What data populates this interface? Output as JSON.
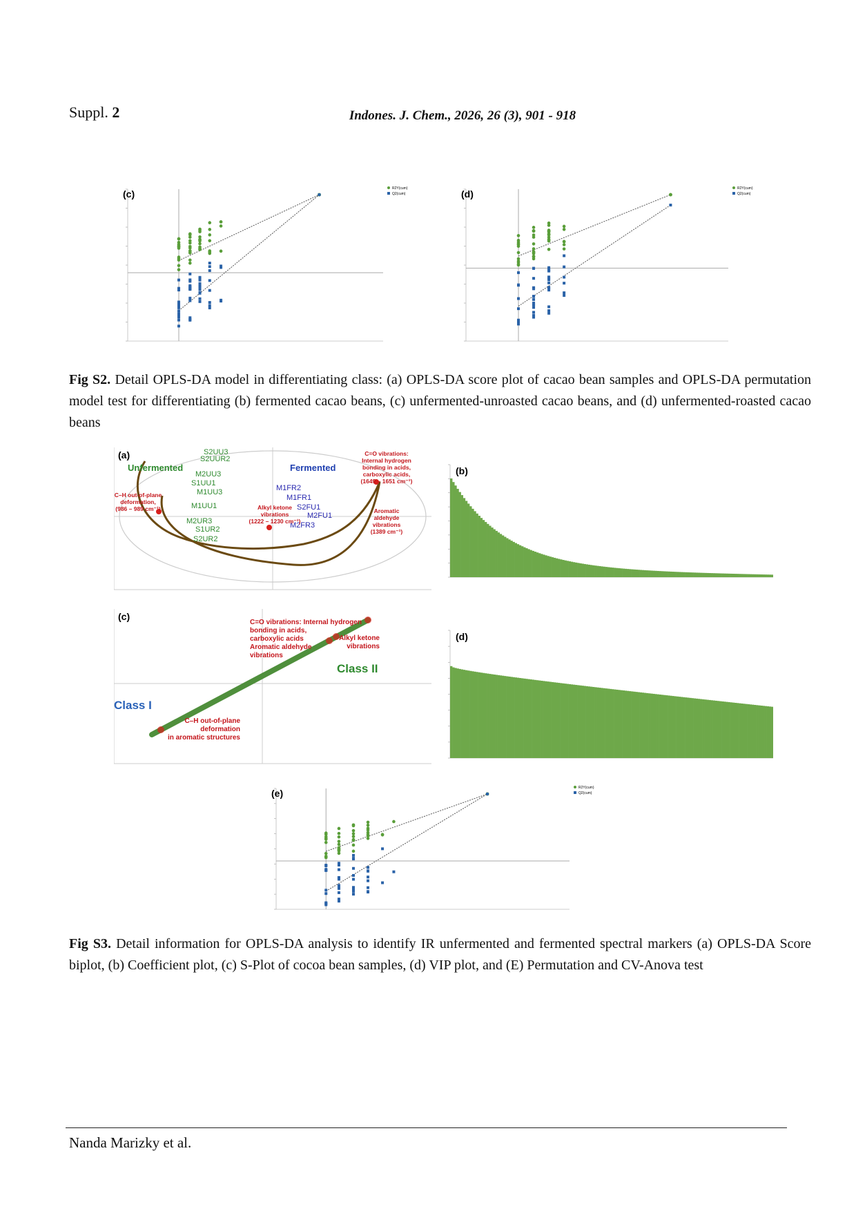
{
  "header": {
    "suppl_label": "Suppl.",
    "suppl_number": "2",
    "journal": "Indones. J. Chem., 2026, 26 (3), 901 - 918"
  },
  "figure_s2": {
    "panels": [
      {
        "label": "(c)"
      },
      {
        "label": "(d)"
      }
    ],
    "legend": [
      "R2Y(cum)",
      "Q2(cum)"
    ],
    "caption_label": "Fig S2.",
    "caption": "Detail OPLS-DA model in differentiating class: (a) OPLS-DA score plot of cacao bean samples and OPLS-DA permutation model test for differentiating (b) fermented cacao beans, (c) unfermented-unroasted cacao beans, and (d) unfermented-roasted cacao beans"
  },
  "figure_s3": {
    "panel_a": {
      "label": "(a)",
      "groups": [
        "Unfermented",
        "Fermented"
      ],
      "sample_labels": [
        "S2UU3",
        "S2UUR2",
        "M2UU3",
        "S1UU1",
        "M1UU3",
        "M1UU1",
        "M2UR3",
        "S1UR2",
        "S2UR2",
        "M1FR2",
        "M1FR1",
        "S2FU1",
        "M2FU1",
        "M2FR3"
      ],
      "annotations": [
        {
          "lines": [
            "C=O vibrations:",
            "Internal hydrogen",
            "bonding in acids,",
            "carboxylic acids,",
            "(1649 – 1651 cm⁻¹)"
          ]
        },
        {
          "lines": [
            "C–H out-of-plane",
            "deformation,",
            "(986 – 989 cm⁻¹)"
          ]
        },
        {
          "lines": [
            "Alkyl ketone",
            "vibrations",
            "(1222 – 1230 cm⁻¹)"
          ]
        },
        {
          "lines": [
            "Aromatic",
            "aldehyde",
            "vibrations",
            "(1389 cm⁻¹)"
          ]
        }
      ]
    },
    "panel_b": {
      "label": "(b)"
    },
    "panel_c": {
      "label": "(c)",
      "classes": [
        "Class I",
        "Class II"
      ],
      "annotations": [
        {
          "lines": [
            "C=O vibrations: Internal hydrogen",
            "bonding in acids,",
            "carboxylic acids",
            "Aromatic aldehyde",
            "vibrations"
          ]
        },
        {
          "lines": [
            "Alkyl ketone",
            "vibrations"
          ]
        },
        {
          "lines": [
            "C–H out-of-plane",
            "deformation",
            "in aromatic structures"
          ]
        }
      ]
    },
    "panel_d": {
      "label": "(d)"
    },
    "panel_e": {
      "label": "(e)"
    },
    "caption_label": "Fig S3.",
    "caption": "Detail information for OPLS-DA analysis to identify IR unfermented and fermented spectral markers (a) OPLS-DA Score biplot, (b) Coefficient plot, (c) S-Plot of cocoa bean samples, (d) VIP plot, and (E) Permutation and CV-Anova test"
  },
  "footer": {
    "author": "Nanda Marizky et al."
  }
}
